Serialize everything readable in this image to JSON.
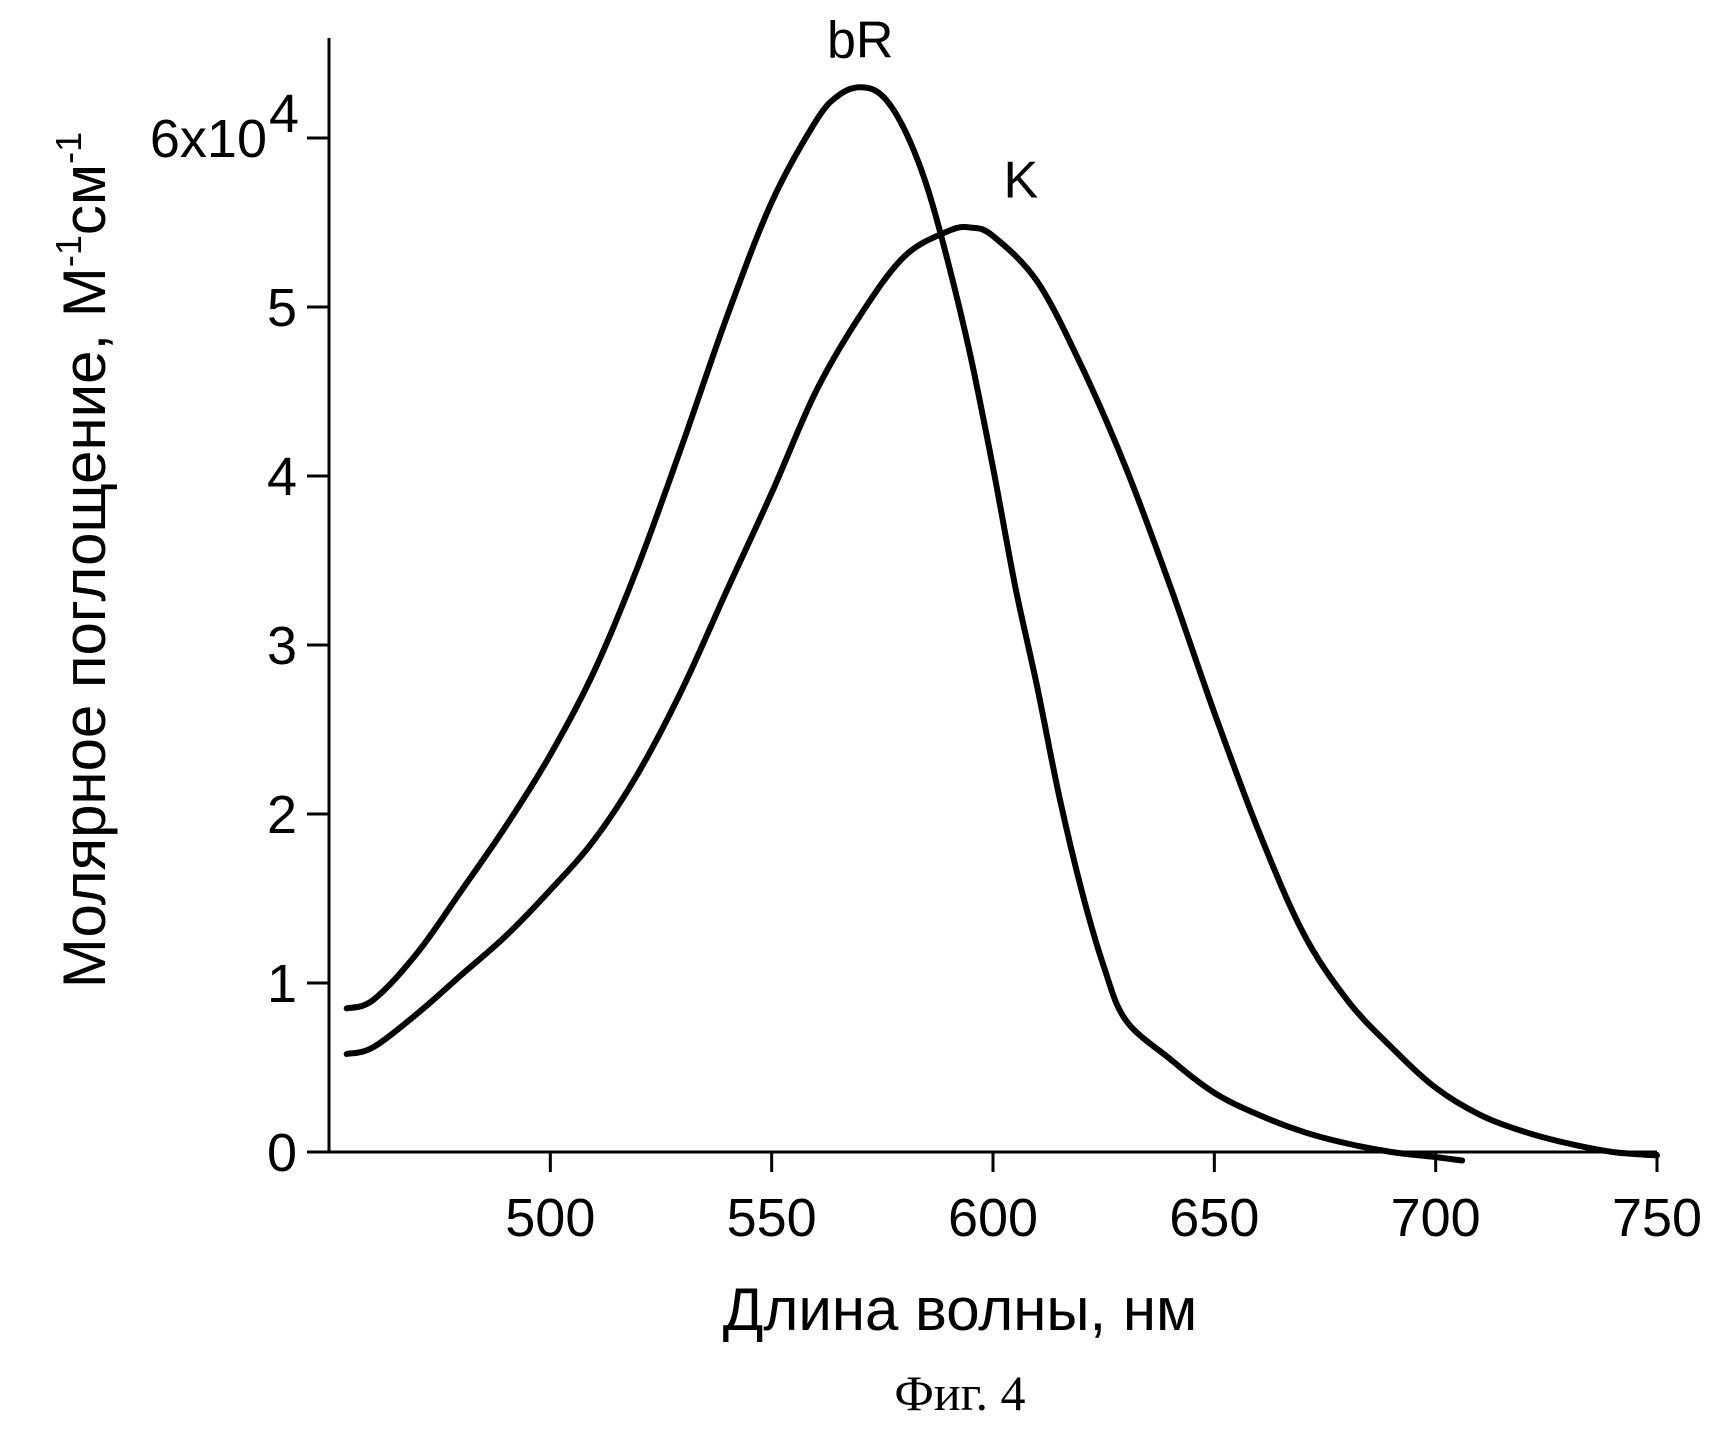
{
  "chart_data": {
    "type": "line",
    "xlabel": "Длина волны, нм",
    "ylabel_main": "Молярное поглощение, М",
    "ylabel_sup1": "-1",
    "ylabel_unit": "см",
    "ylabel_sup2": "-1",
    "xlim": [
      450,
      750
    ],
    "ylim": [
      0,
      6.4
    ],
    "x_ticks": [
      500,
      550,
      600,
      650,
      700,
      750
    ],
    "y_ticks": [
      {
        "value": 0,
        "label": "0"
      },
      {
        "value": 1,
        "label": "1"
      },
      {
        "value": 2,
        "label": "2"
      },
      {
        "value": 3,
        "label": "3"
      },
      {
        "value": 4,
        "label": "4"
      },
      {
        "value": 5,
        "label": "5"
      },
      {
        "value": 6,
        "label": "6x10",
        "sup": "4"
      }
    ],
    "series": [
      {
        "name": "bR",
        "x": [
          454,
          460,
          470,
          480,
          490,
          500,
          510,
          520,
          530,
          540,
          550,
          560,
          565,
          570,
          575,
          580,
          585,
          590,
          595,
          600,
          605,
          610,
          615,
          620,
          625,
          630,
          640,
          650,
          660,
          670,
          680,
          690,
          700,
          706
        ],
        "y": [
          0.85,
          0.9,
          1.18,
          1.55,
          1.93,
          2.35,
          2.85,
          3.48,
          4.2,
          4.95,
          5.62,
          6.1,
          6.25,
          6.3,
          6.25,
          6.05,
          5.72,
          5.25,
          4.7,
          4.05,
          3.35,
          2.75,
          2.1,
          1.55,
          1.1,
          0.78,
          0.55,
          0.35,
          0.22,
          0.12,
          0.05,
          0.0,
          -0.03,
          -0.05
        ]
      },
      {
        "name": "K",
        "x": [
          454,
          460,
          470,
          480,
          490,
          500,
          510,
          520,
          530,
          540,
          550,
          560,
          570,
          580,
          590,
          595,
          600,
          610,
          620,
          630,
          640,
          650,
          660,
          670,
          680,
          690,
          700,
          710,
          720,
          730,
          740,
          750
        ],
        "y": [
          0.58,
          0.62,
          0.82,
          1.05,
          1.28,
          1.55,
          1.85,
          2.25,
          2.75,
          3.33,
          3.9,
          4.5,
          4.95,
          5.3,
          5.45,
          5.47,
          5.42,
          5.15,
          4.65,
          4.05,
          3.35,
          2.6,
          1.9,
          1.3,
          0.9,
          0.62,
          0.38,
          0.22,
          0.12,
          0.05,
          0.0,
          -0.02
        ]
      }
    ],
    "grid": false,
    "legend": "none"
  },
  "caption": "Фиг. 4"
}
